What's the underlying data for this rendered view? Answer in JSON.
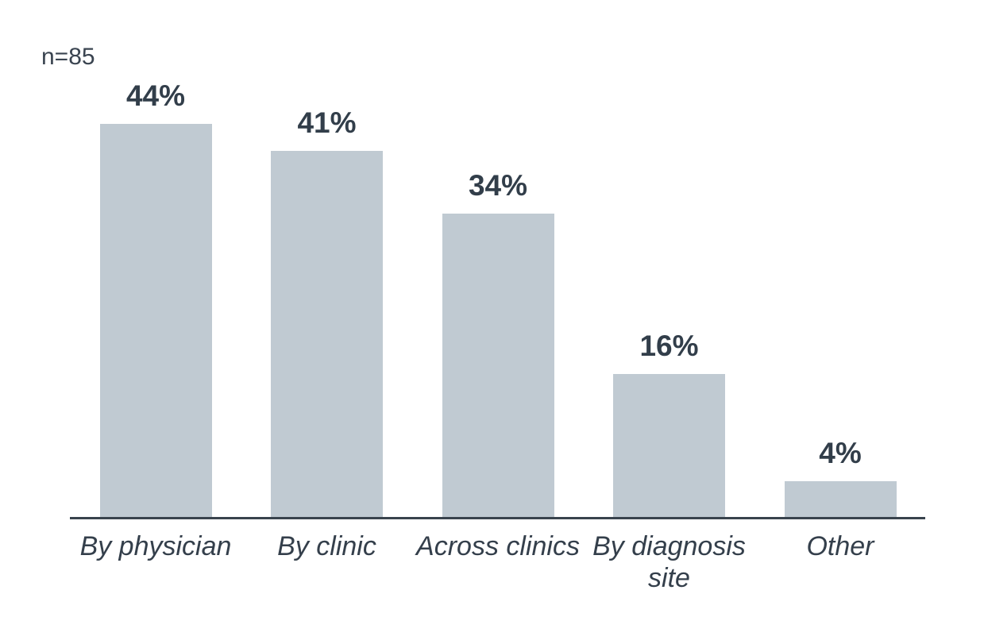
{
  "note": "n=85",
  "chart_data": {
    "type": "bar",
    "title": "",
    "xlabel": "",
    "ylabel": "",
    "categories": [
      "By physician",
      "By clinic",
      "Across clinics",
      "By diagnosis site",
      "Other"
    ],
    "values": [
      44,
      41,
      34,
      16,
      4
    ],
    "value_labels": [
      "44%",
      "41%",
      "34%",
      "16%",
      "4%"
    ],
    "sample_size_note": "n=85",
    "ylim": [
      0,
      50
    ],
    "grid": false,
    "legend": false,
    "value_labels_position": "above-bars",
    "category_labels_style": "italic",
    "bar_color": "#c0cad2",
    "value_label_color": "#323e4a",
    "category_label_color": "#343f4b",
    "axis_line_color": "#39434d",
    "background_color": "#ffffff"
  }
}
